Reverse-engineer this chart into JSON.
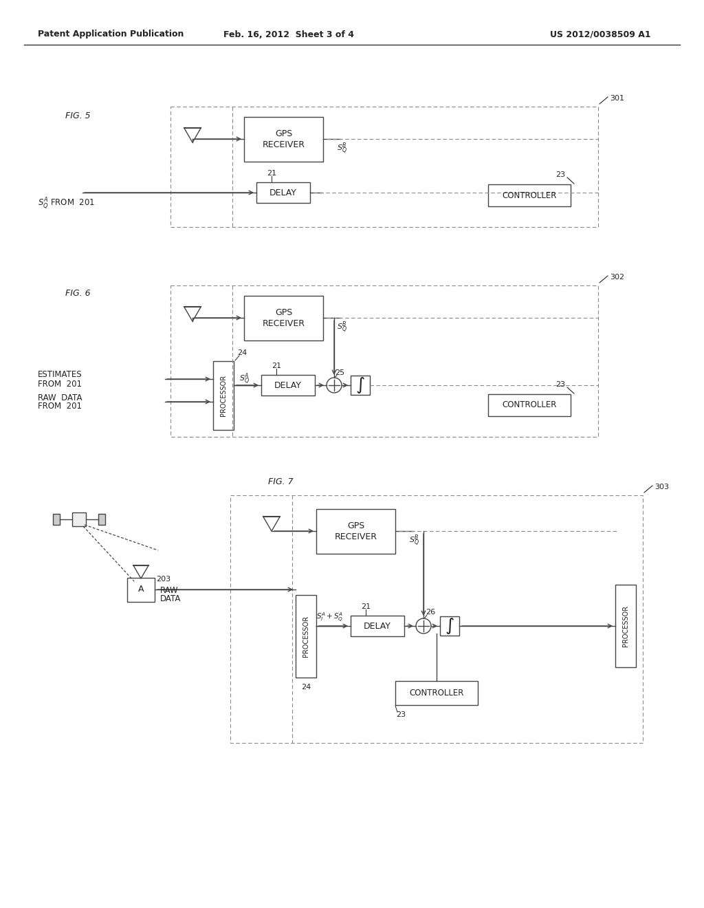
{
  "header_left": "Patent Application Publication",
  "header_center": "Feb. 16, 2012  Sheet 3 of 4",
  "header_right": "US 2012/0038509 A1",
  "bg_color": "#ffffff",
  "line_color": "#444444",
  "text_color": "#222222",
  "dashed_color": "#888888"
}
